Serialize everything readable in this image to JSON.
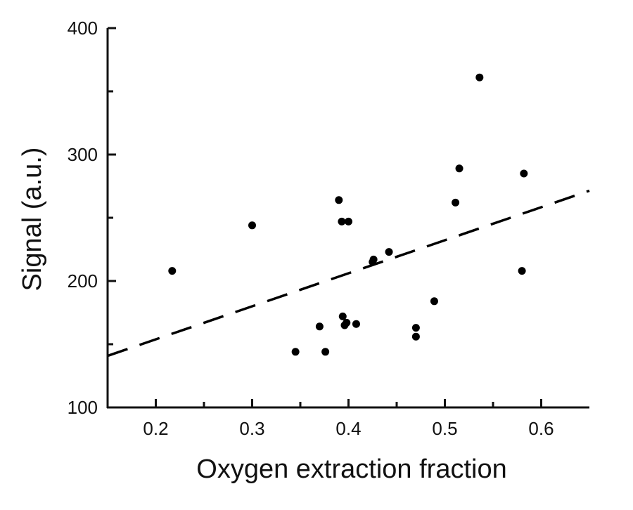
{
  "chart_data": {
    "type": "scatter",
    "xlabel": "Oxygen extraction fraction",
    "ylabel": "Signal (a.u.)",
    "xlim": [
      0.15,
      0.65
    ],
    "ylim": [
      100,
      400
    ],
    "x_major_ticks": [
      0.2,
      0.3,
      0.4,
      0.5,
      0.6
    ],
    "x_tick_labels": [
      "0.2",
      "0.3",
      "0.4",
      "0.5",
      "0.6"
    ],
    "x_minor_ticks": [
      0.25,
      0.35,
      0.45,
      0.55
    ],
    "y_major_ticks": [
      100,
      200,
      300,
      400
    ],
    "y_tick_labels": [
      "100",
      "200",
      "300",
      "400"
    ],
    "y_minor_ticks": [
      150,
      250,
      350
    ],
    "grid": false,
    "point_color": "#000000",
    "series": [
      {
        "points": [
          {
            "x": 0.217,
            "y": 208
          },
          {
            "x": 0.3,
            "y": 244
          },
          {
            "x": 0.345,
            "y": 144
          },
          {
            "x": 0.37,
            "y": 164
          },
          {
            "x": 0.376,
            "y": 144
          },
          {
            "x": 0.39,
            "y": 264
          },
          {
            "x": 0.393,
            "y": 247
          },
          {
            "x": 0.394,
            "y": 172
          },
          {
            "x": 0.396,
            "y": 165
          },
          {
            "x": 0.398,
            "y": 167
          },
          {
            "x": 0.4,
            "y": 247
          },
          {
            "x": 0.408,
            "y": 166
          },
          {
            "x": 0.425,
            "y": 215
          },
          {
            "x": 0.426,
            "y": 217
          },
          {
            "x": 0.442,
            "y": 223
          },
          {
            "x": 0.47,
            "y": 163
          },
          {
            "x": 0.47,
            "y": 156
          },
          {
            "x": 0.489,
            "y": 184
          },
          {
            "x": 0.511,
            "y": 262
          },
          {
            "x": 0.515,
            "y": 289
          },
          {
            "x": 0.536,
            "y": 361
          },
          {
            "x": 0.58,
            "y": 208
          },
          {
            "x": 0.582,
            "y": 285
          }
        ]
      }
    ],
    "fit_line": {
      "style": "dashed",
      "color": "#000000",
      "x": [
        0.15,
        0.65
      ],
      "y": [
        140.8,
        271.4
      ]
    }
  }
}
